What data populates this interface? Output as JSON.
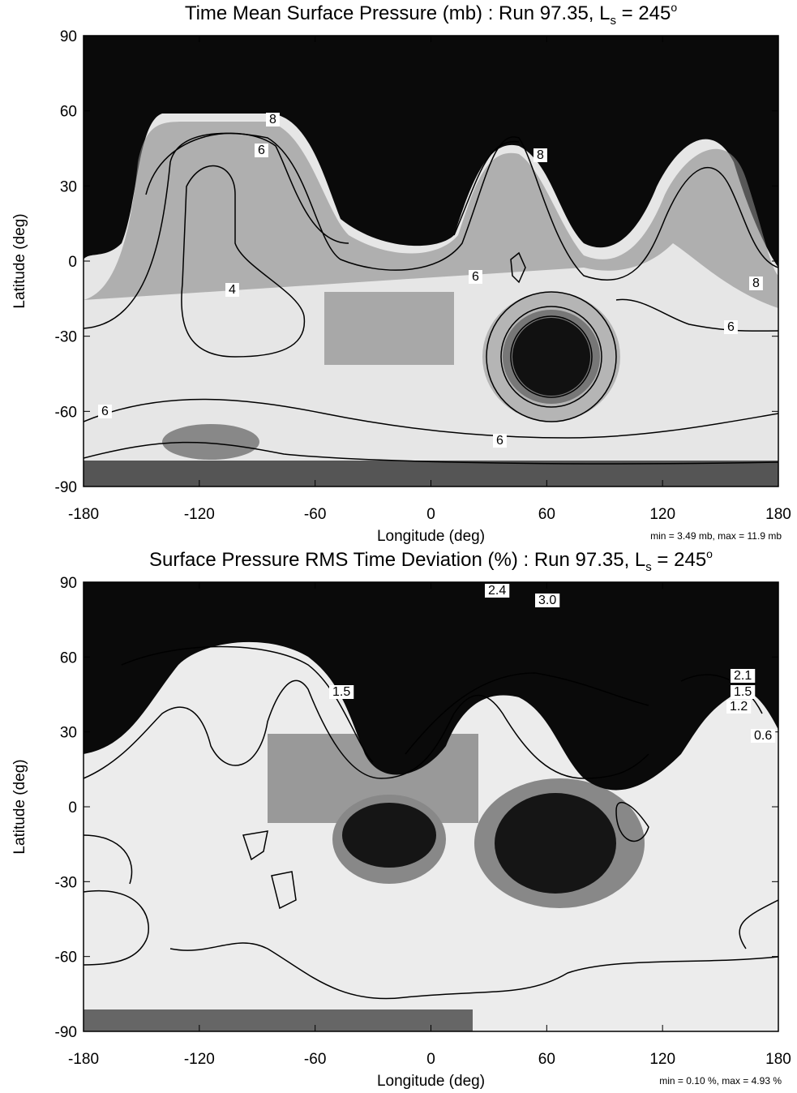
{
  "chart_data": [
    {
      "type": "contour",
      "title": "Time Mean Surface Pressure (mb) : Run 97.35, L",
      "title_subscript": "s",
      "title_suffix": " = 245",
      "title_superscript": "o",
      "x_label": "Longitude (deg)",
      "y_label": "Latitude (deg)",
      "xlim": [
        -180,
        180
      ],
      "ylim": [
        -90,
        90
      ],
      "xticks": [
        -180,
        -120,
        -60,
        0,
        60,
        120,
        180
      ],
      "yticks": [
        -90,
        -60,
        -30,
        0,
        30,
        60,
        90
      ],
      "contour_labels": [
        8,
        6,
        4,
        8,
        6,
        6,
        8,
        6,
        6
      ],
      "note": "min = 3.49 mb, max = 11.9 mb"
    },
    {
      "type": "contour",
      "title": "Surface Pressure RMS Time Deviation (%) : Run 97.35, L",
      "title_subscript": "s",
      "title_suffix": " = 245",
      "title_superscript": "o",
      "x_label": "Longitude (deg)",
      "y_label": "Latitude (deg)",
      "xlim": [
        -180,
        180
      ],
      "ylim": [
        -90,
        90
      ],
      "xticks": [
        -180,
        -120,
        -60,
        0,
        60,
        120,
        180
      ],
      "yticks": [
        -90,
        -60,
        -30,
        0,
        30,
        60,
        90
      ],
      "contour_labels": [
        2.4,
        {
          "value": 3,
          "label": "3.0"
        },
        1.5,
        2.1,
        1.5,
        1.2,
        0.6
      ],
      "note": "min = 0.10 %, max = 4.93 %"
    }
  ]
}
